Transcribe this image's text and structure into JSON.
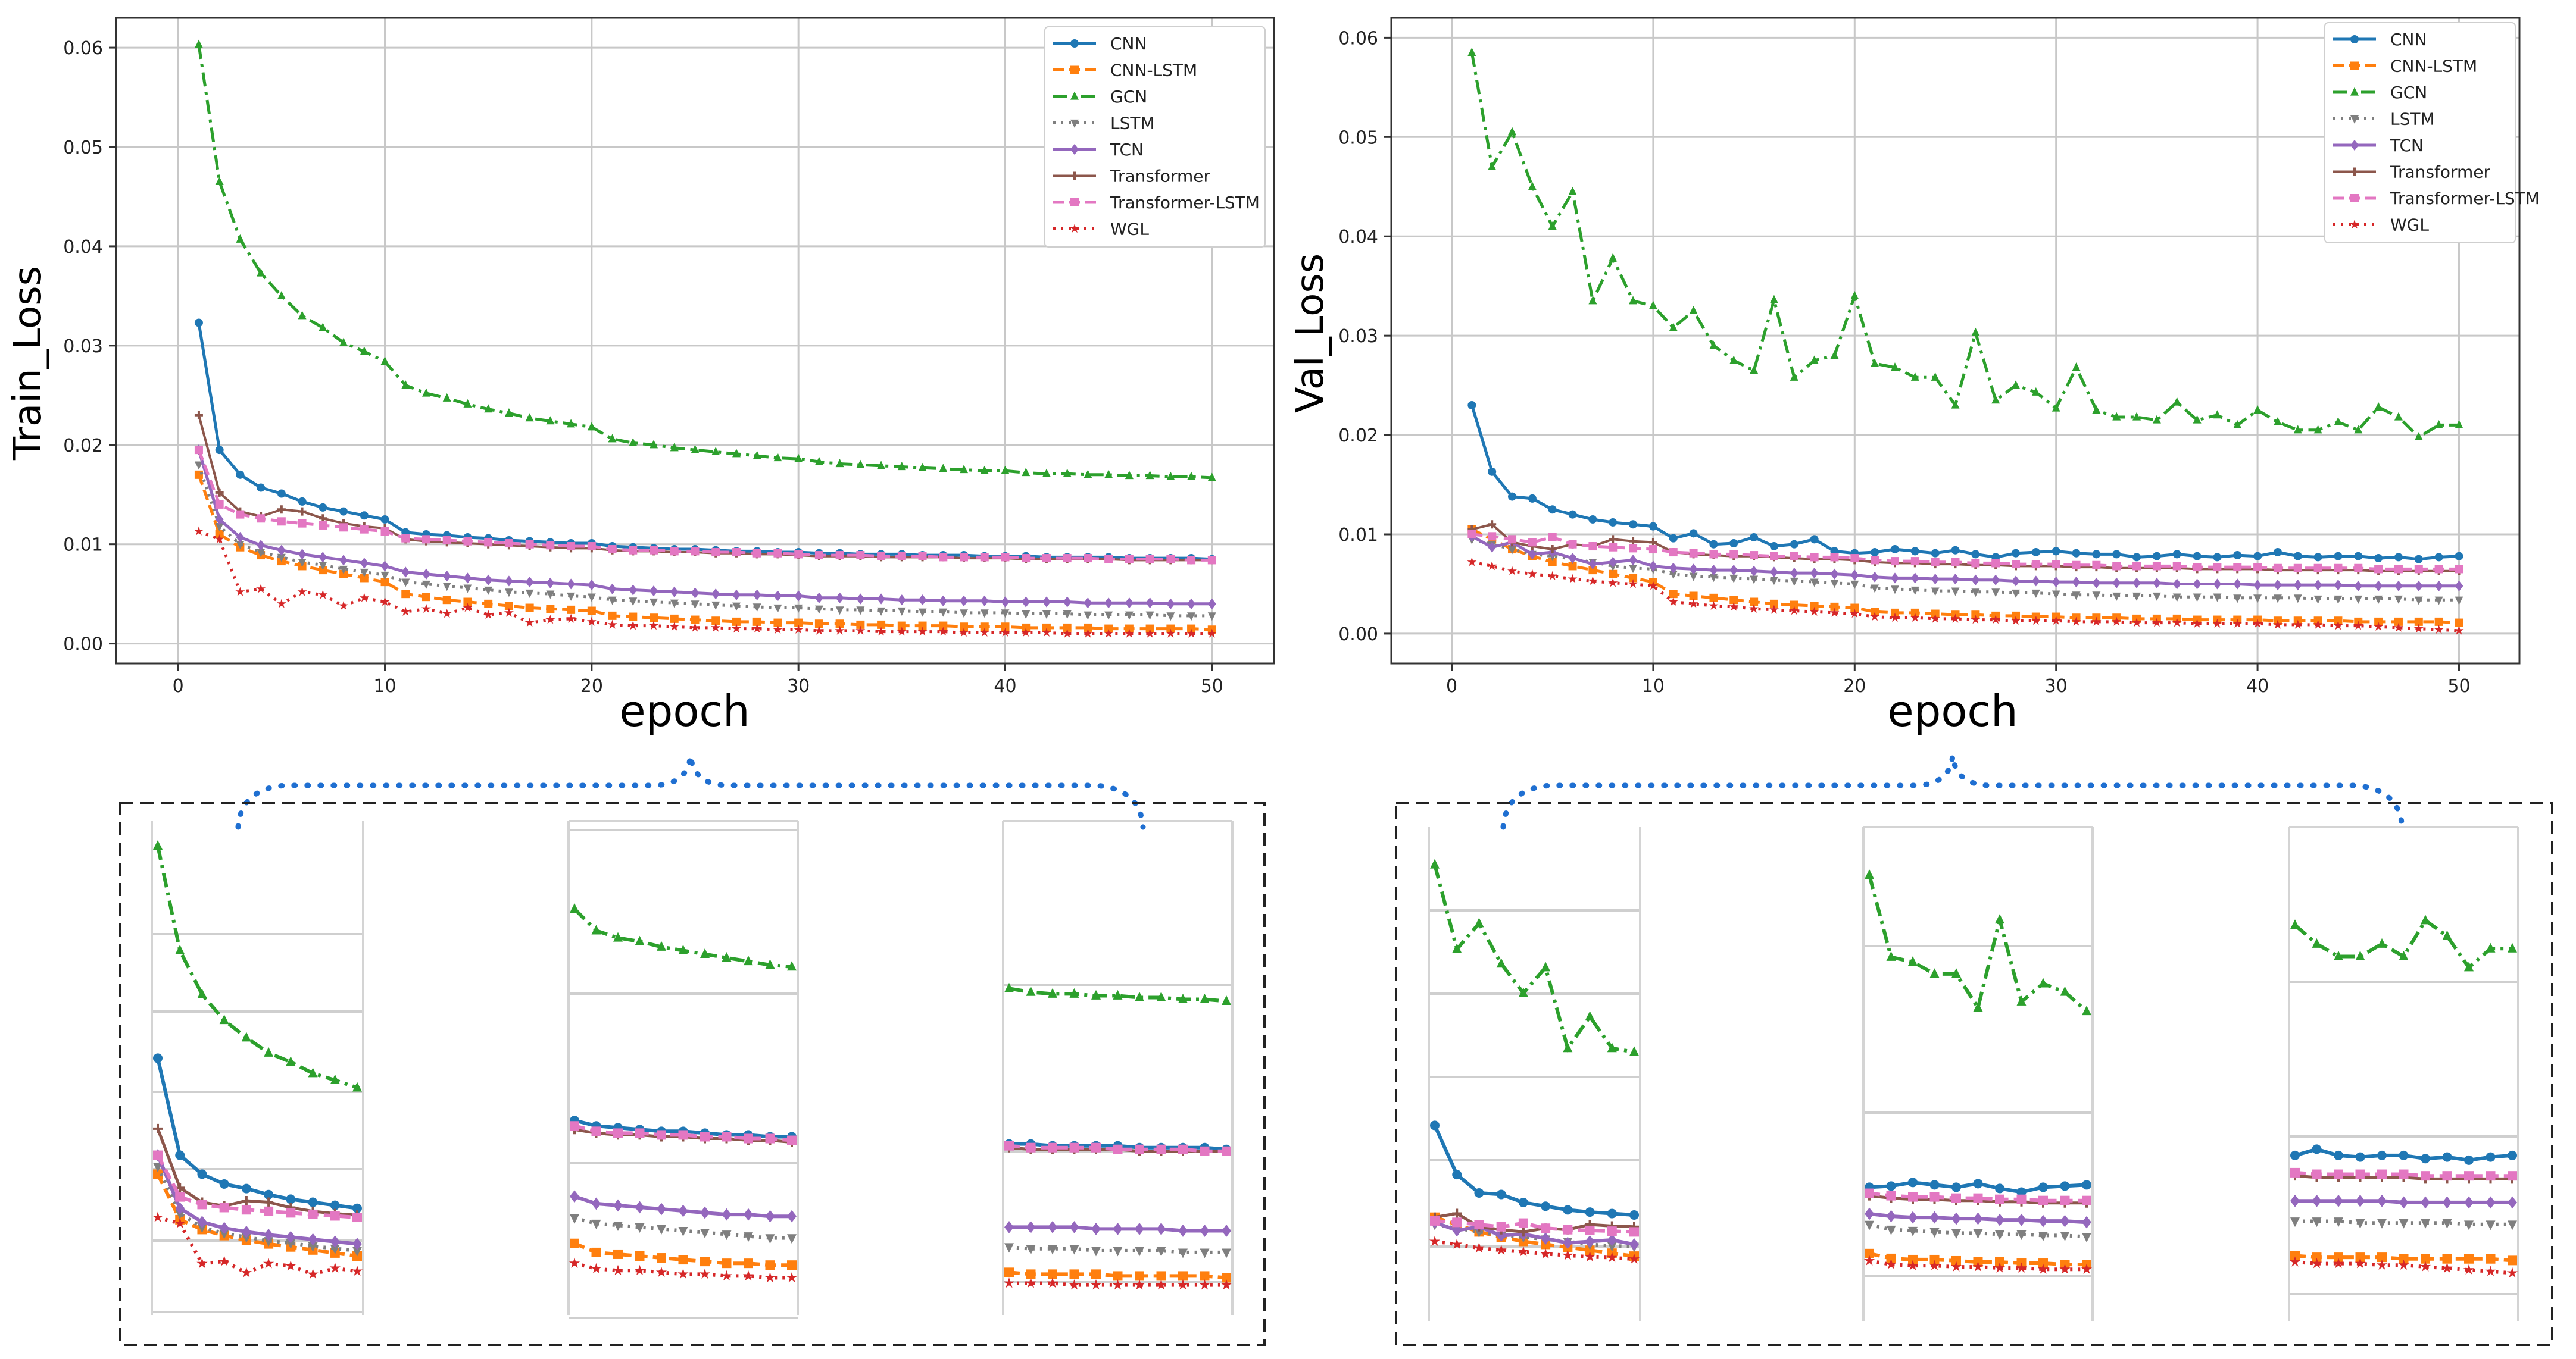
{
  "chart_data": [
    {
      "type": "line",
      "title": "",
      "xlabel": "epoch",
      "ylabel": "Train_Loss",
      "xlim": [
        -3,
        53
      ],
      "ylim": [
        -0.002,
        0.063
      ],
      "xticks": [
        "0",
        "10",
        "20",
        "30",
        "40",
        "50"
      ],
      "yticks": [
        "0.00",
        "0.01",
        "0.02",
        "0.03",
        "0.04",
        "0.05",
        "0.06"
      ],
      "grid": true,
      "legend_position": "top-right",
      "series": [
        {
          "name": "CNN",
          "color": "#1f77b4",
          "values": [
            0.0323,
            0.0195,
            0.017,
            0.0157,
            0.0151,
            0.0143,
            0.0137,
            0.0133,
            0.0129,
            0.0125,
            0.0112,
            0.011,
            0.0109,
            0.0107,
            0.0106,
            0.0104,
            0.0103,
            0.0102,
            0.0101,
            0.0101,
            0.0098,
            0.0097,
            0.0096,
            0.0095,
            0.0095,
            0.0094,
            0.0093,
            0.0093,
            0.0092,
            0.0092,
            0.0091,
            0.0091,
            0.009,
            0.009,
            0.009,
            0.0089,
            0.0089,
            0.0089,
            0.0088,
            0.0088,
            0.0088,
            0.0087,
            0.0087,
            0.0087,
            0.0087,
            0.0086,
            0.0086,
            0.0086,
            0.0086,
            0.0085
          ]
        },
        {
          "name": "CNN-LSTM",
          "color": "#ff7f0e",
          "values": [
            0.017,
            0.011,
            0.0097,
            0.0089,
            0.0083,
            0.0078,
            0.0074,
            0.007,
            0.0066,
            0.0062,
            0.005,
            0.0047,
            0.0044,
            0.0042,
            0.004,
            0.0038,
            0.0036,
            0.0035,
            0.0034,
            0.0033,
            0.0028,
            0.0027,
            0.0026,
            0.0025,
            0.0024,
            0.0023,
            0.0022,
            0.0022,
            0.0021,
            0.0021,
            0.002,
            0.002,
            0.0019,
            0.0019,
            0.0018,
            0.0018,
            0.0018,
            0.0017,
            0.0017,
            0.0017,
            0.0016,
            0.0016,
            0.0016,
            0.0016,
            0.0015,
            0.0015,
            0.0015,
            0.0015,
            0.0015,
            0.0014
          ]
        },
        {
          "name": "GCN",
          "color": "#2ca02c",
          "values": [
            0.0603,
            0.0465,
            0.0407,
            0.0373,
            0.035,
            0.033,
            0.0318,
            0.0303,
            0.0294,
            0.0284,
            0.026,
            0.0252,
            0.0247,
            0.0241,
            0.0236,
            0.0232,
            0.0227,
            0.0224,
            0.0221,
            0.0218,
            0.0206,
            0.0202,
            0.02,
            0.0197,
            0.0195,
            0.0193,
            0.0191,
            0.0189,
            0.0187,
            0.0186,
            0.0183,
            0.0181,
            0.018,
            0.0179,
            0.0178,
            0.0177,
            0.0176,
            0.0175,
            0.0174,
            0.0174,
            0.0172,
            0.0171,
            0.0171,
            0.017,
            0.017,
            0.0169,
            0.0169,
            0.0168,
            0.0168,
            0.0167
          ]
        },
        {
          "name": "LSTM",
          "color": "#7f7f7f",
          "values": [
            0.018,
            0.0118,
            0.01,
            0.0092,
            0.0087,
            0.0082,
            0.0079,
            0.0075,
            0.0072,
            0.0069,
            0.0062,
            0.006,
            0.0058,
            0.0056,
            0.0054,
            0.0052,
            0.0051,
            0.005,
            0.0048,
            0.0047,
            0.0044,
            0.0043,
            0.0042,
            0.0041,
            0.004,
            0.0039,
            0.0038,
            0.0037,
            0.0036,
            0.0036,
            0.0035,
            0.0034,
            0.0034,
            0.0033,
            0.0033,
            0.0032,
            0.0032,
            0.0031,
            0.0031,
            0.0031,
            0.003,
            0.003,
            0.003,
            0.0029,
            0.0029,
            0.0029,
            0.0029,
            0.0028,
            0.0028,
            0.0028
          ]
        },
        {
          "name": "TCN",
          "color": "#9467bd",
          "values": [
            0.0195,
            0.0125,
            0.0107,
            0.0099,
            0.0094,
            0.009,
            0.0087,
            0.0084,
            0.0081,
            0.0078,
            0.0072,
            0.007,
            0.0068,
            0.0066,
            0.0064,
            0.0063,
            0.0062,
            0.0061,
            0.006,
            0.0059,
            0.0055,
            0.0054,
            0.0053,
            0.0052,
            0.0051,
            0.005,
            0.0049,
            0.0049,
            0.0048,
            0.0048,
            0.0046,
            0.0046,
            0.0045,
            0.0045,
            0.0044,
            0.0044,
            0.0043,
            0.0043,
            0.0043,
            0.0042,
            0.0042,
            0.0042,
            0.0042,
            0.0041,
            0.0041,
            0.0041,
            0.0041,
            0.004,
            0.004,
            0.004
          ]
        },
        {
          "name": "Transformer",
          "color": "#8c564b",
          "values": [
            0.023,
            0.0152,
            0.0133,
            0.0128,
            0.0135,
            0.0133,
            0.0126,
            0.0121,
            0.0118,
            0.0116,
            0.0105,
            0.0103,
            0.0102,
            0.0101,
            0.01,
            0.0099,
            0.0098,
            0.0097,
            0.0096,
            0.0096,
            0.0094,
            0.0093,
            0.0093,
            0.0092,
            0.0092,
            0.0091,
            0.0091,
            0.009,
            0.009,
            0.0089,
            0.0088,
            0.0088,
            0.0088,
            0.0087,
            0.0087,
            0.0087,
            0.0087,
            0.0086,
            0.0086,
            0.0086,
            0.0085,
            0.0085,
            0.0085,
            0.0085,
            0.0085,
            0.0084,
            0.0084,
            0.0084,
            0.0084,
            0.0084
          ]
        },
        {
          "name": "Transformer-LSTM",
          "color": "#e377c2",
          "values": [
            0.0195,
            0.014,
            0.013,
            0.0126,
            0.0123,
            0.0121,
            0.0119,
            0.0117,
            0.0115,
            0.0113,
            0.0106,
            0.0105,
            0.0104,
            0.0103,
            0.0102,
            0.0101,
            0.01,
            0.0099,
            0.0098,
            0.0098,
            0.0095,
            0.0094,
            0.0094,
            0.0093,
            0.0093,
            0.0092,
            0.0092,
            0.0091,
            0.0091,
            0.009,
            0.0089,
            0.0089,
            0.0089,
            0.0088,
            0.0088,
            0.0088,
            0.0087,
            0.0087,
            0.0087,
            0.0087,
            0.0086,
            0.0086,
            0.0086,
            0.0086,
            0.0085,
            0.0085,
            0.0085,
            0.0085,
            0.0084,
            0.0084
          ]
        },
        {
          "name": "WGL",
          "color": "#d62728",
          "values": [
            0.0113,
            0.0105,
            0.0052,
            0.0055,
            0.004,
            0.0052,
            0.0049,
            0.0038,
            0.0046,
            0.0042,
            0.0032,
            0.0035,
            0.003,
            0.0036,
            0.0029,
            0.0031,
            0.0021,
            0.0024,
            0.0025,
            0.0022,
            0.0019,
            0.0018,
            0.0018,
            0.0017,
            0.0016,
            0.0016,
            0.0015,
            0.0015,
            0.0014,
            0.0014,
            0.0013,
            0.0013,
            0.0013,
            0.0012,
            0.0012,
            0.0012,
            0.0012,
            0.0011,
            0.0011,
            0.0011,
            0.0011,
            0.0011,
            0.001,
            0.001,
            0.001,
            0.001,
            0.001,
            0.001,
            0.001,
            0.001
          ]
        }
      ]
    },
    {
      "type": "line",
      "title": "",
      "xlabel": "epoch",
      "ylabel": "Val_Loss",
      "xlim": [
        -3,
        53
      ],
      "ylim": [
        -0.003,
        0.062
      ],
      "xticks": [
        "0",
        "10",
        "20",
        "30",
        "40",
        "50"
      ],
      "yticks": [
        "0.00",
        "0.01",
        "0.02",
        "0.03",
        "0.04",
        "0.05",
        "0.06"
      ],
      "grid": true,
      "legend_position": "top-right",
      "series": [
        {
          "name": "CNN",
          "color": "#1f77b4",
          "values": [
            0.023,
            0.0163,
            0.0138,
            0.0136,
            0.0125,
            0.012,
            0.0115,
            0.0112,
            0.011,
            0.0108,
            0.0096,
            0.0101,
            0.009,
            0.0091,
            0.0097,
            0.0088,
            0.009,
            0.0095,
            0.0083,
            0.0081,
            0.0082,
            0.0085,
            0.0083,
            0.0081,
            0.0084,
            0.008,
            0.0077,
            0.0081,
            0.0082,
            0.0083,
            0.0081,
            0.008,
            0.008,
            0.0077,
            0.0078,
            0.008,
            0.0078,
            0.0077,
            0.0079,
            0.0078,
            0.0082,
            0.0078,
            0.0077,
            0.0078,
            0.0078,
            0.0076,
            0.0077,
            0.0075,
            0.0077,
            0.0078
          ]
        },
        {
          "name": "CNN-LSTM",
          "color": "#ff7f0e",
          "values": [
            0.0105,
            0.0095,
            0.0085,
            0.0078,
            0.0072,
            0.0068,
            0.0064,
            0.006,
            0.0056,
            0.0052,
            0.004,
            0.0038,
            0.0036,
            0.0034,
            0.0032,
            0.003,
            0.0029,
            0.0028,
            0.0027,
            0.0026,
            0.0022,
            0.0021,
            0.0021,
            0.002,
            0.0019,
            0.0019,
            0.0018,
            0.0018,
            0.0017,
            0.0017,
            0.0016,
            0.0016,
            0.0016,
            0.0015,
            0.0015,
            0.0015,
            0.0014,
            0.0014,
            0.0014,
            0.0014,
            0.0013,
            0.0013,
            0.0013,
            0.0013,
            0.0012,
            0.0012,
            0.0012,
            0.0012,
            0.0012,
            0.0011
          ]
        },
        {
          "name": "GCN",
          "color": "#2ca02c",
          "values": [
            0.0585,
            0.047,
            0.0505,
            0.045,
            0.041,
            0.0445,
            0.0335,
            0.0378,
            0.0335,
            0.033,
            0.0308,
            0.0325,
            0.029,
            0.0275,
            0.0265,
            0.0336,
            0.0258,
            0.0275,
            0.028,
            0.034,
            0.0272,
            0.0268,
            0.0258,
            0.0258,
            0.023,
            0.0303,
            0.0235,
            0.025,
            0.0243,
            0.0227,
            0.0268,
            0.0225,
            0.0218,
            0.0218,
            0.0215,
            0.0233,
            0.0215,
            0.022,
            0.021,
            0.0225,
            0.0213,
            0.0205,
            0.0205,
            0.0213,
            0.0205,
            0.0228,
            0.0218,
            0.0198,
            0.021,
            0.021
          ]
        },
        {
          "name": "LSTM",
          "color": "#7f7f7f",
          "values": [
            0.0095,
            0.009,
            0.0085,
            0.008,
            0.0078,
            0.0075,
            0.0072,
            0.0068,
            0.0066,
            0.0065,
            0.006,
            0.0058,
            0.0057,
            0.0056,
            0.0055,
            0.0054,
            0.0053,
            0.0052,
            0.0051,
            0.005,
            0.0046,
            0.0045,
            0.0044,
            0.0043,
            0.0043,
            0.0042,
            0.0042,
            0.0041,
            0.0041,
            0.004,
            0.0039,
            0.0039,
            0.0038,
            0.0038,
            0.0038,
            0.0037,
            0.0037,
            0.0037,
            0.0036,
            0.0036,
            0.0036,
            0.0036,
            0.0035,
            0.0035,
            0.0035,
            0.0035,
            0.0035,
            0.0034,
            0.0034,
            0.0034
          ]
        },
        {
          "name": "TCN",
          "color": "#9467bd",
          "values": [
            0.0098,
            0.0087,
            0.0092,
            0.008,
            0.0082,
            0.0076,
            0.007,
            0.0072,
            0.0074,
            0.0068,
            0.0066,
            0.0065,
            0.0064,
            0.0064,
            0.0063,
            0.0062,
            0.0061,
            0.0061,
            0.006,
            0.0059,
            0.0057,
            0.0056,
            0.0056,
            0.0055,
            0.0055,
            0.0054,
            0.0054,
            0.0053,
            0.0053,
            0.0052,
            0.0052,
            0.0051,
            0.0051,
            0.0051,
            0.0051,
            0.005,
            0.005,
            0.005,
            0.005,
            0.0049,
            0.0049,
            0.0049,
            0.0049,
            0.0049,
            0.0048,
            0.0048,
            0.0048,
            0.0048,
            0.0048,
            0.0048
          ]
        },
        {
          "name": "Transformer",
          "color": "#8c564b",
          "values": [
            0.0105,
            0.011,
            0.0092,
            0.0088,
            0.0085,
            0.009,
            0.0088,
            0.0095,
            0.0093,
            0.0092,
            0.0082,
            0.008,
            0.0079,
            0.0078,
            0.0078,
            0.0077,
            0.0076,
            0.0075,
            0.0075,
            0.0074,
            0.0072,
            0.0071,
            0.0071,
            0.007,
            0.007,
            0.0069,
            0.0069,
            0.0068,
            0.0068,
            0.0068,
            0.0067,
            0.0067,
            0.0066,
            0.0066,
            0.0066,
            0.0066,
            0.0065,
            0.0065,
            0.0065,
            0.0065,
            0.0064,
            0.0064,
            0.0064,
            0.0064,
            0.0064,
            0.0063,
            0.0063,
            0.0063,
            0.0063,
            0.0063
          ]
        },
        {
          "name": "Transformer-LSTM",
          "color": "#e377c2",
          "values": [
            0.01,
            0.0098,
            0.0095,
            0.0092,
            0.0097,
            0.009,
            0.0088,
            0.0087,
            0.0086,
            0.0085,
            0.0082,
            0.0081,
            0.008,
            0.008,
            0.0079,
            0.0078,
            0.0078,
            0.0077,
            0.0077,
            0.0076,
            0.0074,
            0.0073,
            0.0073,
            0.0072,
            0.0072,
            0.0071,
            0.0071,
            0.007,
            0.007,
            0.007,
            0.0069,
            0.0069,
            0.0068,
            0.0068,
            0.0068,
            0.0068,
            0.0067,
            0.0067,
            0.0067,
            0.0067,
            0.0066,
            0.0066,
            0.0066,
            0.0066,
            0.0066,
            0.0065,
            0.0065,
            0.0065,
            0.0065,
            0.0065
          ]
        },
        {
          "name": "WGL",
          "color": "#d62728",
          "values": [
            0.0072,
            0.0068,
            0.0063,
            0.006,
            0.0058,
            0.0055,
            0.0053,
            0.0051,
            0.005,
            0.0048,
            0.0032,
            0.003,
            0.0028,
            0.0027,
            0.0025,
            0.0024,
            0.0023,
            0.0022,
            0.0021,
            0.002,
            0.0017,
            0.0016,
            0.0016,
            0.0015,
            0.0015,
            0.0014,
            0.0014,
            0.0013,
            0.0013,
            0.0013,
            0.0012,
            0.0012,
            0.0012,
            0.0011,
            0.0011,
            0.0011,
            0.001,
            0.001,
            0.001,
            0.001,
            0.0009,
            0.0009,
            0.0009,
            0.0008,
            0.0008,
            0.0007,
            0.0006,
            0.0005,
            0.0004,
            0.0003
          ]
        }
      ]
    }
  ]
}
